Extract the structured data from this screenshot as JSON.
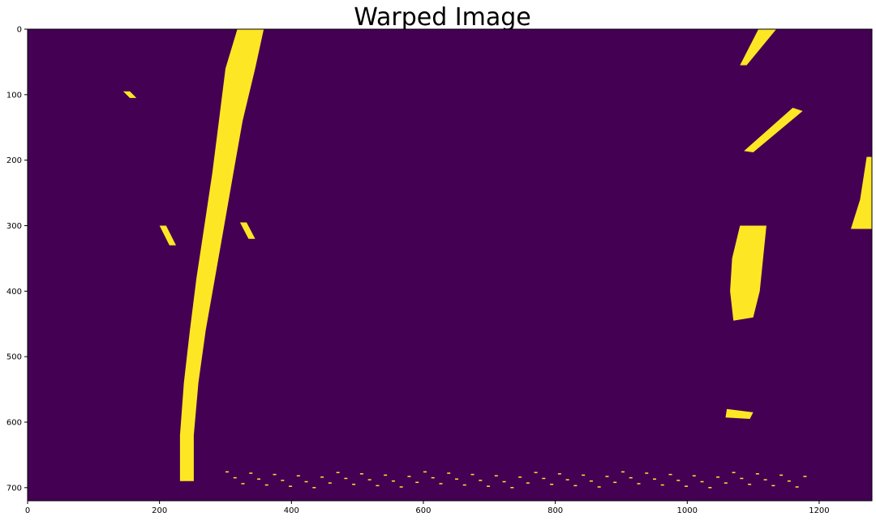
{
  "chart_data": {
    "type": "heatmap",
    "title": "Warped Image",
    "xlabel": "",
    "ylabel": "",
    "xlim": [
      0,
      1280
    ],
    "ylim": [
      720,
      0
    ],
    "x_ticks": [
      0,
      200,
      400,
      600,
      800,
      1000,
      1200
    ],
    "y_ticks": [
      0,
      100,
      200,
      300,
      400,
      500,
      600,
      700
    ],
    "image_size": [
      1280,
      720
    ],
    "colormap": "viridis",
    "colors": {
      "background": "#440154",
      "foreground": "#fde725"
    },
    "grid": false,
    "features": [
      {
        "name": "left-lane-line",
        "shape": "poly",
        "points": [
          [
            330,
            0
          ],
          [
            358,
            0
          ],
          [
            345,
            60
          ],
          [
            326,
            140
          ],
          [
            312,
            220
          ],
          [
            298,
            300
          ],
          [
            284,
            380
          ],
          [
            270,
            460
          ],
          [
            259,
            540
          ],
          [
            252,
            620
          ],
          [
            252,
            690
          ],
          [
            231,
            690
          ],
          [
            231,
            620
          ],
          [
            237,
            540
          ],
          [
            246,
            460
          ],
          [
            256,
            380
          ],
          [
            268,
            300
          ],
          [
            280,
            220
          ],
          [
            290,
            140
          ],
          [
            300,
            60
          ],
          [
            318,
            0
          ]
        ]
      },
      {
        "name": "upper-right-dashes",
        "shape": "poly",
        "points": [
          [
            1108,
            0
          ],
          [
            1135,
            0
          ],
          [
            1090,
            55
          ],
          [
            1080,
            55
          ]
        ]
      },
      {
        "name": "mid-right-dashes",
        "shape": "poly",
        "points": [
          [
            1160,
            120
          ],
          [
            1175,
            125
          ],
          [
            1100,
            188
          ],
          [
            1086,
            186
          ]
        ]
      },
      {
        "name": "right-lane-block",
        "shape": "poly",
        "points": [
          [
            1080,
            300
          ],
          [
            1120,
            300
          ],
          [
            1115,
            350
          ],
          [
            1110,
            400
          ],
          [
            1100,
            440
          ],
          [
            1070,
            445
          ],
          [
            1065,
            400
          ],
          [
            1068,
            350
          ]
        ]
      },
      {
        "name": "far-right-edge",
        "shape": "poly",
        "points": [
          [
            1272,
            195
          ],
          [
            1280,
            195
          ],
          [
            1280,
            305
          ],
          [
            1248,
            305
          ],
          [
            1262,
            260
          ]
        ]
      },
      {
        "name": "left-specks-top",
        "shape": "poly",
        "points": [
          [
            145,
            95
          ],
          [
            155,
            95
          ],
          [
            165,
            105
          ],
          [
            155,
            105
          ]
        ]
      },
      {
        "name": "left-specks-mid",
        "shape": "poly",
        "points": [
          [
            200,
            300
          ],
          [
            210,
            300
          ],
          [
            225,
            330
          ],
          [
            215,
            330
          ]
        ]
      },
      {
        "name": "center-dashes",
        "shape": "poly",
        "points": [
          [
            322,
            295
          ],
          [
            332,
            295
          ],
          [
            345,
            320
          ],
          [
            335,
            320
          ]
        ]
      },
      {
        "name": "small-blob",
        "shape": "poly",
        "points": [
          [
            1060,
            580
          ],
          [
            1100,
            585
          ],
          [
            1095,
            595
          ],
          [
            1058,
            593
          ]
        ]
      },
      {
        "name": "bottom-noise",
        "shape": "rect",
        "x": [
          300,
          1180
        ],
        "y": [
          675,
          700
        ]
      }
    ]
  }
}
